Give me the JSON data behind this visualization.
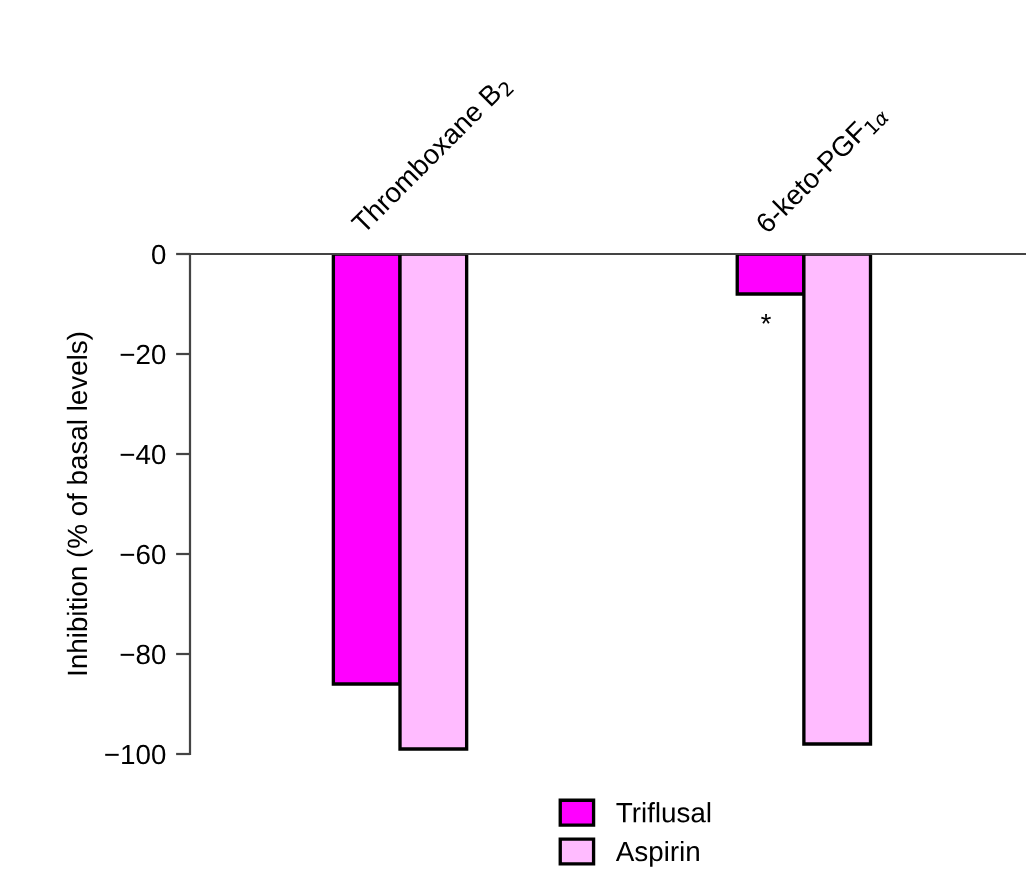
{
  "chart_data": {
    "type": "bar",
    "categories": [
      "Thromboxane B$_{2}$",
      "6-keto-PGF$_{1α}$"
    ],
    "series": [
      {
        "name": "Triflusal",
        "color": "#ff00ff",
        "values": [
          -86,
          -8
        ]
      },
      {
        "name": "Aspirin",
        "color": "#ffbbff",
        "values": [
          -99,
          -98
        ]
      }
    ],
    "ylabel": "Inhibition (% of basal levels)",
    "ylim": [
      -100,
      0
    ],
    "yticks": [
      0,
      {
        "value": -20,
        "label": "−20"
      },
      {
        "value": -40,
        "label": "−40"
      },
      {
        "value": -60,
        "label": "−60"
      },
      {
        "value": -80,
        "label": "−80"
      },
      {
        "value": -100,
        "label": "−100"
      }
    ],
    "annotations": [
      "*"
    ],
    "legend": "bottom",
    "grid": false
  }
}
